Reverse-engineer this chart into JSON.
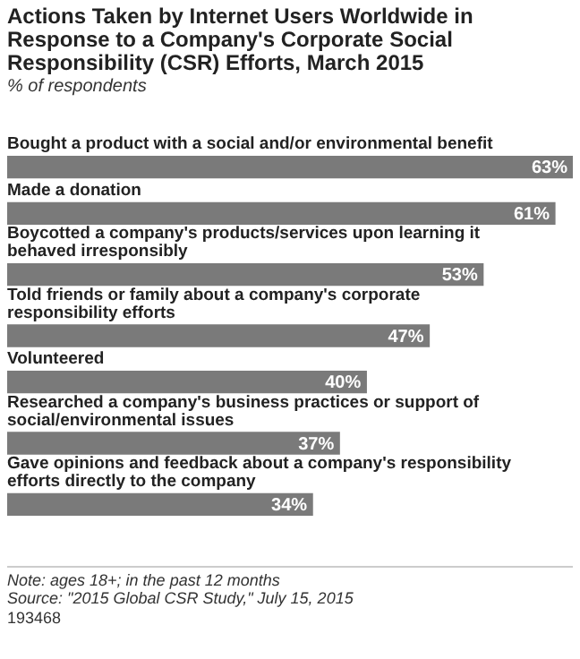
{
  "chart_data": {
    "type": "bar",
    "orientation": "horizontal",
    "title": "Actions Taken by Internet Users Worldwide in Response to a Company's Corporate Social Responsibility (CSR) Efforts, March 2015",
    "subtitle": "% of respondents",
    "categories": [
      "Bought a product with a social and/or environmental benefit",
      "Made a donation",
      "Boycotted a company's products/services upon learning it behaved irresponsibly",
      "Told friends or family about a company's corporate responsibility efforts",
      "Volunteered",
      "Researched a company's business practices or support of social/environmental issues",
      "Gave opinions and feedback about a company's responsibility efforts directly to the company"
    ],
    "values": [
      63,
      61,
      53,
      47,
      40,
      37,
      34
    ],
    "value_labels": [
      "63%",
      "61%",
      "53%",
      "47%",
      "40%",
      "37%",
      "34%"
    ],
    "color": "#7a7a7a",
    "legend": false,
    "annotations": [
      "Note: ages 18+; in the past 12 months",
      "Source: \"2015 Global CSR Study,\" July 15, 2015",
      "193468"
    ]
  }
}
